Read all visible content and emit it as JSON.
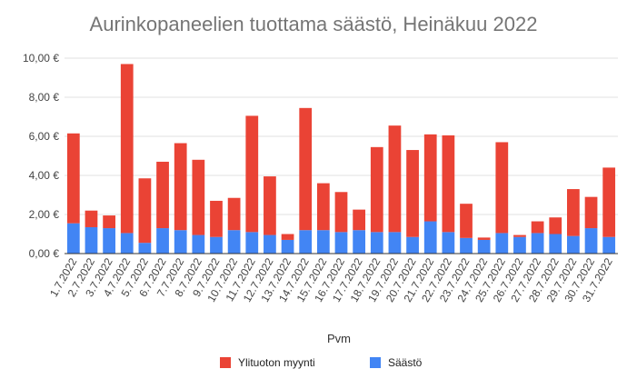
{
  "chart_data": {
    "type": "bar",
    "stacked": true,
    "title": "Aurinkopaneelien tuottama säästö, Heinäkuu 2022",
    "xlabel": "Pvm",
    "ylabel": "",
    "ylim": [
      0,
      10
    ],
    "yticks": [
      "0,00 €",
      "2,00 €",
      "4,00 €",
      "6,00 €",
      "8,00 €",
      "10,00 €"
    ],
    "grid": true,
    "legend_position": "bottom",
    "colors": {
      "saasto": "#4285f4",
      "ylituotto": "#ea4335"
    },
    "categories": [
      "1.7.2022",
      "2.7.2022",
      "3.7.2022",
      "4.7.2022",
      "5.7.2022",
      "6.7.2022",
      "7.7.2022",
      "8.7.2022",
      "9.7.2022",
      "10.7.2022",
      "11.7.2022",
      "12.7.2022",
      "13.7.2022",
      "14.7.2022",
      "15.7.2022",
      "16.7.2022",
      "17.7.2022",
      "18.7.2022",
      "19.7.2022",
      "20.7.2022",
      "21.7.2022",
      "22.7.2022",
      "23.7.2022",
      "24.7.2022",
      "25.7.2022",
      "26.7.2022",
      "27.7.2022",
      "28.7.2022",
      "29.7.2022",
      "30.7.2022",
      "31.7.2022"
    ],
    "series": [
      {
        "name": "Säästö",
        "color": "#4285f4",
        "values": [
          1.55,
          1.35,
          1.3,
          1.05,
          0.55,
          1.3,
          1.2,
          0.95,
          0.85,
          1.2,
          1.1,
          0.95,
          0.7,
          1.2,
          1.2,
          1.1,
          1.2,
          1.1,
          1.1,
          0.85,
          1.65,
          1.1,
          0.8,
          0.7,
          1.05,
          0.85,
          1.05,
          1.0,
          0.9,
          1.3,
          0.85
        ]
      },
      {
        "name": "Ylituoton myynti",
        "color": "#ea4335",
        "values": [
          4.6,
          0.85,
          0.65,
          8.65,
          3.3,
          3.4,
          4.45,
          3.85,
          1.85,
          1.65,
          5.95,
          3.0,
          0.3,
          6.25,
          2.4,
          2.05,
          1.05,
          4.35,
          5.45,
          4.45,
          4.45,
          4.95,
          1.75,
          0.12,
          4.65,
          0.1,
          0.6,
          0.85,
          2.4,
          1.6,
          3.55
        ]
      }
    ],
    "legend": [
      {
        "name": "Ylituoton myynti",
        "color": "#ea4335"
      },
      {
        "name": "Säästö",
        "color": "#4285f4"
      }
    ]
  }
}
